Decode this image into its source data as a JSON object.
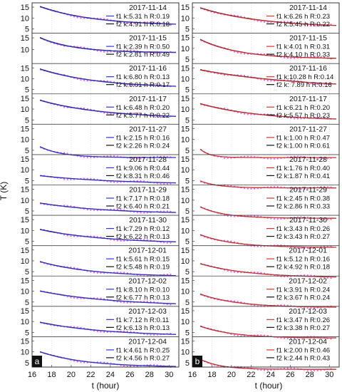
{
  "figure": {
    "xlabel": "t (hour)",
    "ylabel": "T (K)",
    "panel_labels": [
      "a",
      "b"
    ],
    "fit_colors": [
      "#3333dd",
      "#dd3333"
    ],
    "fit2_color": "#111111",
    "data_color": "#ee66ee",
    "grid_color": "#cccccc"
  },
  "chart_data": [
    {
      "type": "line",
      "panel": "a",
      "xlabel": "t (hour)",
      "ylabel": "T (K)",
      "xlim": [
        16,
        31
      ],
      "xticks": [
        16,
        18,
        20,
        22,
        24,
        26,
        28,
        30
      ],
      "grid": true,
      "legend_placement": "right",
      "strips": [
        {
          "date": "2017-11-14",
          "yticks": [
            15,
            10,
            5
          ],
          "ylim": [
            3,
            17
          ],
          "decay": [
            15.2,
            6.4,
            5.5
          ],
          "f1": "f1 k:5.31 h R:0.19",
          "f2": "f2 k:4.91 h R:0.18"
        },
        {
          "date": "2017-11-15",
          "yticks": [
            15,
            10
          ],
          "ylim": [
            4,
            17
          ],
          "decay": [
            15.0,
            8.6,
            3.5
          ],
          "f1": "f1 k:2.39 h R:0.50",
          "f2": "f2 k:2.81 h R:0.49"
        },
        {
          "date": "2017-11-16",
          "yticks": [
            15,
            10,
            5
          ],
          "ylim": [
            3,
            17
          ],
          "decay": [
            14.4,
            5.6,
            6.0
          ],
          "f1": "f1 k:6.80 h R:0.13",
          "f2": "f2 k:6.01 h R:0.17"
        },
        {
          "date": "2017-11-17",
          "yticks": [
            15,
            10,
            5
          ],
          "ylim": [
            3,
            17
          ],
          "decay": [
            14.0,
            5.6,
            6.5
          ],
          "f1": "f1 k:6.48 h R:0.20",
          "f2": "f2 k:5.77 h R:0.22"
        },
        {
          "date": "2017-11-27",
          "yticks": [
            15,
            10,
            5
          ],
          "ylim": [
            3,
            17
          ],
          "decay": [
            6.6,
            1.6,
            2.3
          ],
          "f1": "f1 k:2.15 h R:0.16",
          "f2": "f2 k:2.26 h R:0.24"
        },
        {
          "date": "2017-11-28",
          "yticks": [
            15,
            10,
            5
          ],
          "ylim": [
            3,
            17
          ],
          "decay": [
            7.2,
            3.1,
            8.5
          ],
          "f1": "f1 k:9.06 h R:0.44",
          "f2": "f2 k:8.31 h R:0.46"
        },
        {
          "date": "2017-11-29",
          "yticks": [
            15,
            10,
            5
          ],
          "ylim": [
            3,
            17
          ],
          "decay": [
            8.6,
            3.6,
            6.8
          ],
          "f1": "f1 k:7.17 h R:0.18",
          "f2": "f2 k:6.40 h R:0.21"
        },
        {
          "date": "2017-11-30",
          "yticks": [
            15,
            10,
            5
          ],
          "ylim": [
            3,
            17
          ],
          "decay": [
            10.4,
            3.9,
            6.7
          ],
          "f1": "f1 k:7.29 h R:0.12",
          "f2": "f2 k:6.22 h R:0.13"
        },
        {
          "date": "2017-12-01",
          "yticks": [
            15,
            10,
            5
          ],
          "ylim": [
            3,
            17
          ],
          "decay": [
            9.6,
            2.6,
            5.4
          ],
          "f1": "f1 k:5.61 h R:0.15",
          "f2": "f2 k:5.48 h R:0.19"
        },
        {
          "date": "2017-12-02",
          "yticks": [
            15,
            10,
            5
          ],
          "ylim": [
            3,
            17
          ],
          "decay": [
            10.0,
            3.1,
            7.5
          ],
          "f1": "f1 k:8.10 h R:0.10",
          "f2": "f2 k:6.77 h R:0.13"
        },
        {
          "date": "2017-12-03",
          "yticks": [
            15,
            10,
            5
          ],
          "ylim": [
            3,
            17
          ],
          "decay": [
            9.6,
            3.1,
            7.0
          ],
          "f1": "f1 k:7.12 h R:0.11",
          "f2": "f2 k:6.13 h R:0.13"
        },
        {
          "date": "2017-12-04",
          "yticks": [
            15,
            10,
            5
          ],
          "ylim": [
            3,
            17
          ],
          "decay": [
            10.0,
            2.9,
            4.6
          ],
          "f1": "f1 k:4.61 h R:0.25",
          "f2": "f2 k:4.56 h R:0.27"
        }
      ]
    },
    {
      "type": "line",
      "panel": "b",
      "xlabel": "t (hour)",
      "ylabel": "",
      "xlim": [
        16,
        31
      ],
      "xticks": [
        16,
        18,
        20,
        22,
        24,
        26,
        28,
        30
      ],
      "grid": true,
      "legend_placement": "right",
      "strips": [
        {
          "date": "2017-11-14",
          "yticks": [
            15,
            10,
            5
          ],
          "ylim": [
            3,
            17
          ],
          "decay": [
            14.6,
            5.5,
            6.3
          ],
          "f1": "f1 k:6.26 h R:0.23",
          "f2": "f2 k:5.45 h R:0.22"
        },
        {
          "date": "2017-11-15",
          "yticks": [
            15,
            10,
            5
          ],
          "ylim": [
            3,
            17
          ],
          "decay": [
            14.0,
            5.1,
            4.0
          ],
          "f1": "f1 k:4.01 h R:0.31",
          "f2": "f2 k:4.10 h R:0.33"
        },
        {
          "date": "2017-11-16",
          "yticks": [
            15,
            10,
            5
          ],
          "ylim": [
            3,
            17
          ],
          "decay": [
            14.0,
            5.2,
            10.3
          ],
          "f1": "f1 k:10.28 h R:0.14",
          "f2": "f2 k:  7.89 h R:0.16"
        },
        {
          "date": "2017-11-17",
          "yticks": [
            15,
            10,
            5
          ],
          "ylim": [
            3,
            17
          ],
          "decay": [
            12.4,
            4.5,
            6.2
          ],
          "f1": "f1 k:6.21 h R:0.20",
          "f2": "f2 k:5.57 h R:0.23"
        },
        {
          "date": "2017-11-27",
          "yticks": [
            15,
            10,
            5
          ],
          "ylim": [
            3,
            17
          ],
          "decay": [
            5.4,
            1.6,
            1.0
          ],
          "f1": "f1 k:1.00 h R:0.47",
          "f2": "f2 k:1.00 h R:0.61"
        },
        {
          "date": "2017-11-28",
          "yticks": [
            15,
            10,
            5
          ],
          "ylim": [
            3,
            17
          ],
          "decay": [
            4.8,
            1.6,
            1.8
          ],
          "f1": "f1 k:1.76 h R:0.40",
          "f2": "f2 k:1.87 h R:0.41"
        },
        {
          "date": "2017-11-29",
          "yticks": [
            15,
            10,
            5
          ],
          "ylim": [
            3,
            17
          ],
          "decay": [
            6.8,
            1.6,
            2.5
          ],
          "f1": "f1 k:2.45 h R:0.38",
          "f2": "f2 k:2.86 h R:0.33"
        },
        {
          "date": "2017-11-30",
          "yticks": [
            15,
            10,
            5
          ],
          "ylim": [
            3,
            17
          ],
          "decay": [
            8.0,
            2.1,
            3.4
          ],
          "f1": "f1 k:3.43 h R:0.26",
          "f2": "f2 k:3.43 h R:0.27"
        },
        {
          "date": "2017-12-01",
          "yticks": [
            15,
            10,
            5
          ],
          "ylim": [
            3,
            17
          ],
          "decay": [
            8.6,
            2.1,
            5.0
          ],
          "f1": "f1 k:5.12 h R:0.16",
          "f2": "f2 k:4.92 h R:0.18"
        },
        {
          "date": "2017-12-02",
          "yticks": [
            15,
            10,
            5
          ],
          "ylim": [
            3,
            17
          ],
          "decay": [
            8.6,
            2.4,
            3.8
          ],
          "f1": "f1 k:3.91 h R:0.24",
          "f2": "f2 k:3.67 h R:0.24"
        },
        {
          "date": "2017-12-03",
          "yticks": [
            15,
            10,
            5
          ],
          "ylim": [
            3,
            17
          ],
          "decay": [
            7.8,
            2.3,
            3.4
          ],
          "f1": "f1 k:3.47 h R:0.26",
          "f2": "f2 k:3.38 h R:0.27"
        },
        {
          "date": "2017-12-04",
          "yticks": [
            15,
            10,
            5
          ],
          "ylim": [
            3,
            17
          ],
          "decay": [
            6.6,
            1.9,
            2.0
          ],
          "f1": "f1 k:2.00 h R:0.46",
          "f2": "f2 k:2.44 h R:0.43"
        }
      ]
    }
  ]
}
